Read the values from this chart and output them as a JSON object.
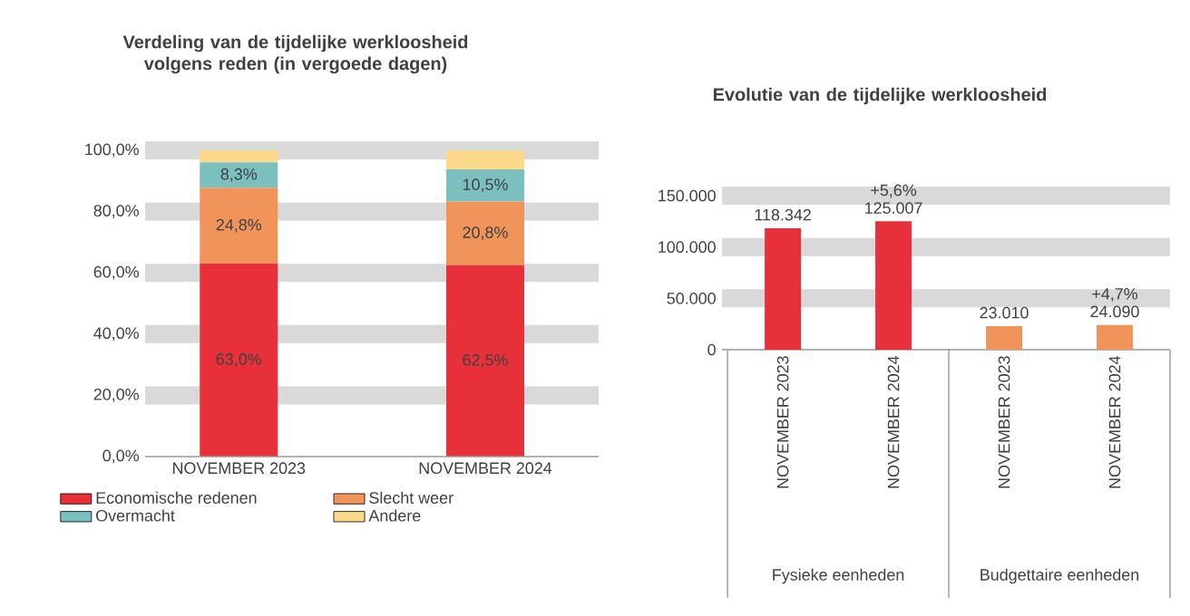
{
  "chart_data": [
    {
      "type": "bar",
      "title": "Verdeling van de tijdelijke werkloosheid volgens reden (in vergoede dagen)",
      "categories": [
        "NOVEMBER 2023",
        "NOVEMBER 2024"
      ],
      "stacked": true,
      "series": [
        {
          "name": "Economische redenen",
          "color": "#e8303a",
          "values": [
            63.0,
            62.5
          ],
          "value_labels": [
            "63,0%",
            "62,5%"
          ]
        },
        {
          "name": "Slecht weer",
          "color": "#f0945c",
          "values": [
            24.8,
            20.8
          ],
          "value_labels": [
            "24,8%",
            "20,8%"
          ]
        },
        {
          "name": "Overmacht",
          "color": "#7bbfbf",
          "values": [
            8.3,
            10.5
          ],
          "value_labels": [
            "8,3%",
            "10,5%"
          ]
        },
        {
          "name": "Andere",
          "color": "#fdd98a",
          "values": [
            3.9,
            6.2
          ]
        }
      ],
      "ylim": [
        0,
        100
      ],
      "yticks": [
        {
          "value": 0,
          "label": "0,0%"
        },
        {
          "value": 20,
          "label": "20,0%"
        },
        {
          "value": 40,
          "label": "40,0%"
        },
        {
          "value": 60,
          "label": "60,0%"
        },
        {
          "value": 80,
          "label": "80,0%"
        },
        {
          "value": 100,
          "label": "100,0%"
        }
      ],
      "grid": "y",
      "legend": "bottom"
    },
    {
      "type": "bar",
      "title": "Evolutie van de tijdelijke werkloosheid",
      "categories": [
        "NOVEMBER 2023",
        "NOVEMBER 2024",
        "NOVEMBER 2023",
        "NOVEMBER 2024"
      ],
      "values": [
        118342,
        125007,
        23010,
        24090
      ],
      "colors": [
        "#e8303a",
        "#e8303a",
        "#f0945c",
        "#f0945c"
      ],
      "value_labels": [
        "118.342",
        "125.007",
        "23.010",
        "24.090"
      ],
      "ylim": [
        0,
        150000
      ],
      "yticks": [
        {
          "value": 0,
          "label": "0"
        },
        {
          "value": 50000,
          "label": "50.000"
        },
        {
          "value": 100000,
          "label": "100.000"
        },
        {
          "value": 150000,
          "label": "150.000"
        }
      ],
      "grid": "y",
      "annotations": [
        "+5,6%",
        "+4,7%",
        "Fysieke eenheden",
        "Budgettaire eenheden"
      ]
    }
  ]
}
